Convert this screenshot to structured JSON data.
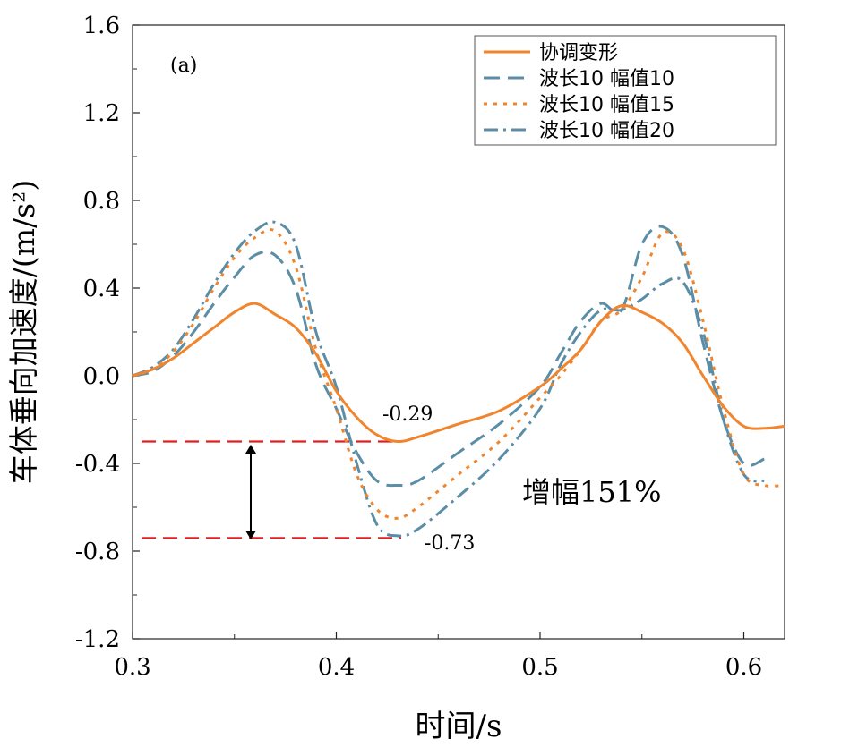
{
  "chart_data": {
    "type": "line",
    "panel_label": "(a)",
    "xlabel": "时间/s",
    "ylabel": "车体垂向加速度/(m/s²)",
    "xlim": [
      0.3,
      0.62
    ],
    "ylim": [
      -1.2,
      1.6
    ],
    "xticks": [
      "0.3",
      "0.4",
      "0.5",
      "0.6"
    ],
    "yticks": [
      "-1.2",
      "-0.8",
      "-0.4",
      "0.0",
      "0.4",
      "0.8",
      "1.2",
      "1.6"
    ],
    "legend_position": "top-right",
    "grid": false,
    "series": [
      {
        "name": "协调变形",
        "color": "#f0852d",
        "dash": "solid",
        "points": [
          [
            0.3,
            0.0
          ],
          [
            0.31,
            0.03
          ],
          [
            0.32,
            0.08
          ],
          [
            0.33,
            0.15
          ],
          [
            0.34,
            0.22
          ],
          [
            0.35,
            0.29
          ],
          [
            0.36,
            0.33
          ],
          [
            0.37,
            0.28
          ],
          [
            0.38,
            0.22
          ],
          [
            0.39,
            0.1
          ],
          [
            0.4,
            -0.07
          ],
          [
            0.41,
            -0.19
          ],
          [
            0.42,
            -0.27
          ],
          [
            0.43,
            -0.3
          ],
          [
            0.44,
            -0.28
          ],
          [
            0.46,
            -0.22
          ],
          [
            0.48,
            -0.16
          ],
          [
            0.5,
            -0.05
          ],
          [
            0.51,
            0.03
          ],
          [
            0.52,
            0.12
          ],
          [
            0.53,
            0.25
          ],
          [
            0.54,
            0.32
          ],
          [
            0.55,
            0.29
          ],
          [
            0.56,
            0.24
          ],
          [
            0.57,
            0.15
          ],
          [
            0.58,
            0.0
          ],
          [
            0.59,
            -0.14
          ],
          [
            0.6,
            -0.23
          ],
          [
            0.61,
            -0.24
          ],
          [
            0.62,
            -0.23
          ]
        ]
      },
      {
        "name": "波长10  幅值10",
        "color": "#5b8ea6",
        "dash": "long-dash",
        "points": [
          [
            0.3,
            0.0
          ],
          [
            0.31,
            0.02
          ],
          [
            0.32,
            0.09
          ],
          [
            0.33,
            0.2
          ],
          [
            0.34,
            0.33
          ],
          [
            0.35,
            0.45
          ],
          [
            0.36,
            0.55
          ],
          [
            0.37,
            0.55
          ],
          [
            0.38,
            0.4
          ],
          [
            0.39,
            0.05
          ],
          [
            0.4,
            -0.15
          ],
          [
            0.41,
            -0.35
          ],
          [
            0.42,
            -0.48
          ],
          [
            0.43,
            -0.5
          ],
          [
            0.44,
            -0.48
          ],
          [
            0.46,
            -0.35
          ],
          [
            0.48,
            -0.22
          ],
          [
            0.5,
            -0.05
          ],
          [
            0.51,
            0.1
          ],
          [
            0.52,
            0.25
          ],
          [
            0.53,
            0.33
          ],
          [
            0.54,
            0.3
          ],
          [
            0.55,
            0.6
          ],
          [
            0.56,
            0.68
          ],
          [
            0.57,
            0.55
          ],
          [
            0.58,
            0.15
          ],
          [
            0.59,
            -0.2
          ],
          [
            0.6,
            -0.4
          ],
          [
            0.61,
            -0.38
          ]
        ]
      },
      {
        "name": "波长10  幅值15",
        "color": "#f0852d",
        "dash": "dot",
        "points": [
          [
            0.3,
            0.0
          ],
          [
            0.31,
            0.03
          ],
          [
            0.32,
            0.11
          ],
          [
            0.33,
            0.24
          ],
          [
            0.34,
            0.4
          ],
          [
            0.35,
            0.54
          ],
          [
            0.36,
            0.63
          ],
          [
            0.37,
            0.66
          ],
          [
            0.38,
            0.5
          ],
          [
            0.39,
            0.12
          ],
          [
            0.4,
            -0.15
          ],
          [
            0.41,
            -0.45
          ],
          [
            0.42,
            -0.61
          ],
          [
            0.43,
            -0.65
          ],
          [
            0.44,
            -0.6
          ],
          [
            0.46,
            -0.45
          ],
          [
            0.48,
            -0.3
          ],
          [
            0.5,
            -0.1
          ],
          [
            0.51,
            0.0
          ],
          [
            0.52,
            0.12
          ],
          [
            0.53,
            0.25
          ],
          [
            0.54,
            0.3
          ],
          [
            0.55,
            0.45
          ],
          [
            0.56,
            0.65
          ],
          [
            0.57,
            0.58
          ],
          [
            0.58,
            0.25
          ],
          [
            0.59,
            -0.15
          ],
          [
            0.6,
            -0.45
          ],
          [
            0.61,
            -0.5
          ],
          [
            0.62,
            -0.5
          ]
        ]
      },
      {
        "name": "波长10  幅值20",
        "color": "#5b8ea6",
        "dash": "dash-dot",
        "points": [
          [
            0.3,
            0.0
          ],
          [
            0.31,
            0.04
          ],
          [
            0.32,
            0.12
          ],
          [
            0.33,
            0.26
          ],
          [
            0.34,
            0.42
          ],
          [
            0.35,
            0.56
          ],
          [
            0.36,
            0.66
          ],
          [
            0.37,
            0.7
          ],
          [
            0.38,
            0.6
          ],
          [
            0.39,
            0.2
          ],
          [
            0.4,
            -0.05
          ],
          [
            0.41,
            -0.4
          ],
          [
            0.42,
            -0.68
          ],
          [
            0.43,
            -0.73
          ],
          [
            0.44,
            -0.7
          ],
          [
            0.46,
            -0.55
          ],
          [
            0.48,
            -0.38
          ],
          [
            0.5,
            -0.15
          ],
          [
            0.51,
            0.05
          ],
          [
            0.52,
            0.2
          ],
          [
            0.53,
            0.3
          ],
          [
            0.54,
            0.3
          ],
          [
            0.55,
            0.35
          ],
          [
            0.56,
            0.42
          ],
          [
            0.57,
            0.43
          ],
          [
            0.58,
            0.2
          ],
          [
            0.59,
            -0.2
          ],
          [
            0.6,
            -0.45
          ],
          [
            0.61,
            -0.48
          ]
        ]
      }
    ],
    "annotations": {
      "min_orange_label": "-0.29",
      "min_blue_label": "-0.73",
      "increase_label": "增幅151%",
      "ref_line_values": [
        -0.3,
        -0.74
      ],
      "ref_line_color": "#e02020"
    }
  }
}
